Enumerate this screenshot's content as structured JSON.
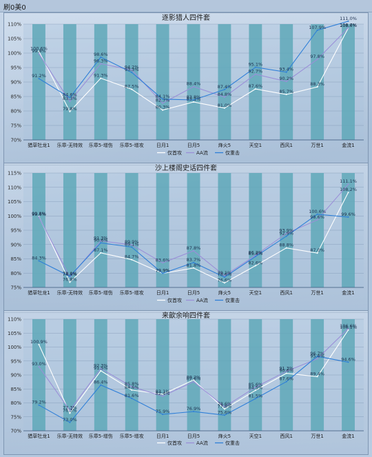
{
  "app": {
    "title": "刷0美0"
  },
  "chart_data": [
    {
      "type": "line",
      "title": "逐影猎人四件套",
      "categories": [
        "猎草牡龙1",
        "乐章-无特效",
        "乐章5-增伤",
        "乐章5-增攻",
        "日月1",
        "日月5",
        "烽火5",
        "天空1",
        "西风1",
        "万世1",
        "金流1"
      ],
      "ylim": [
        70,
        110
      ],
      "yticks": [
        "70%",
        "75%",
        "80%",
        "85%",
        "90%",
        "95%",
        "100%",
        "105%",
        "110%"
      ],
      "series": [
        {
          "name": "仅首攻",
          "color": "#ffffff",
          "values": [
            100.6,
            79.8,
            91.3,
            87.5,
            80.3,
            83.1,
            81.0,
            87.6,
            85.7,
            88.3,
            108.6
          ]
        },
        {
          "name": "AA流",
          "color": "#9a8fd8",
          "values": [
            99.8,
            83.3,
            96.3,
            94.2,
            82.7,
            88.4,
            84.8,
            92.7,
            90.2,
            97.8,
            108.7
          ]
        },
        {
          "name": "仅重击",
          "color": "#2e7fd8",
          "values": [
            91.2,
            84.6,
            98.6,
            93.3,
            84.1,
            83.8,
            87.4,
            95.1,
            93.4,
            107.9,
            111.0
          ]
        }
      ],
      "labels": [
        [
          "100.6%",
          "79.8%",
          "91.3%",
          "87.5%",
          "80.3%",
          "83.1%",
          "81.0%",
          "87.6%",
          "85.7%",
          "88.3%",
          "108.6%"
        ],
        [
          "99.8%",
          "83.3%",
          "96.3%",
          "94.2%",
          "82.7%",
          "88.4%",
          "84.8%",
          "92.7%",
          "90.2%",
          "97.8%",
          "108.7%"
        ],
        [
          "91.2%",
          "84.6%",
          "98.6%",
          "93.3%",
          "84.1%",
          "83.8%",
          "87.4%",
          "95.1%",
          "93.4%",
          "107.9%",
          "111.0%"
        ]
      ],
      "legend": [
        "仅首攻",
        "AA流",
        "仅重击"
      ]
    },
    {
      "type": "line",
      "title": "沙上楼阁史话四件套",
      "categories": [
        "猎草牡龙1",
        "乐章-无特效",
        "乐章5-增伤",
        "乐章5-增攻",
        "日月1",
        "日月5",
        "烽火5",
        "天空1",
        "西风1",
        "万世1",
        "金流1"
      ],
      "ylim": [
        75,
        115
      ],
      "yticks": [
        "75%",
        "80%",
        "85%",
        "90%",
        "95%",
        "100%",
        "105%",
        "110%",
        "115%"
      ],
      "series": [
        {
          "name": "仅首攻",
          "color": "#ffffff",
          "values": [
            99.8,
            76.8,
            87.1,
            84.7,
            79.9,
            81.8,
            76.6,
            82.6,
            88.8,
            87.0,
            108.2
          ]
        },
        {
          "name": "AA流",
          "color": "#9a8fd8",
          "values": [
            99.6,
            78.6,
            91.3,
            89.9,
            83.6,
            87.8,
            79.1,
            86.2,
            93.9,
            98.6,
            111.1
          ]
        },
        {
          "name": "仅重击",
          "color": "#2e7fd8",
          "values": [
            84.3,
            78.9,
            90.6,
            89.1,
            79.9,
            83.7,
            78.6,
            85.8,
            92.9,
            100.6,
            99.6
          ]
        }
      ],
      "labels": [
        [
          "99.8%",
          "76.8%",
          "87.1%",
          "84.7%",
          "79.9%",
          "81.8%",
          "76.6%",
          "82.6%",
          "88.8%",
          "87.0%",
          "108.2%"
        ],
        [
          "99.6%",
          "78.6%",
          "91.3%",
          "89.9%",
          "83.6%",
          "87.8%",
          "79.1%",
          "86.2%",
          "93.9%",
          "98.6%",
          "111.1%"
        ],
        [
          "84.3%",
          "78.9%",
          "90.6%",
          "89.1%",
          "79.9%",
          "83.7%",
          "78.6%",
          "85.8%",
          "92.9%",
          "100.6%",
          "99.6%"
        ]
      ],
      "legend": [
        "仅首攻",
        "AA流",
        "仅重击"
      ]
    },
    {
      "type": "line",
      "title": "来歆余响四件套",
      "categories": [
        "猎草牡龙1",
        "乐章-无特效",
        "乐章5-增伤",
        "乐章5-增攻",
        "日月1",
        "日月5",
        "烽火5",
        "天空1",
        "西风1",
        "万世1",
        "金流1"
      ],
      "ylim": [
        70,
        110
      ],
      "yticks": [
        "70%",
        "75%",
        "80%",
        "85%",
        "90%",
        "95%",
        "100%",
        "105%",
        "110%"
      ],
      "series": [
        {
          "name": "仅首攻",
          "color": "#ffffff",
          "values": [
            100.9,
            76.3,
            91.5,
            84.6,
            83.1,
            88.2,
            77.8,
            84.5,
            90.6,
            89.4,
            106.1
          ]
        },
        {
          "name": "AA流",
          "color": "#9a8fd8",
          "values": [
            93.0,
            77.3,
            92.3,
            85.8,
            82.4,
            87.6,
            78.6,
            85.6,
            91.3,
            95.8,
            106.6
          ]
        },
        {
          "name": "仅重击",
          "color": "#2e7fd8",
          "values": [
            79.2,
            73.0,
            86.4,
            81.6,
            75.9,
            76.9,
            75.6,
            81.5,
            87.6,
            96.7,
            94.6
          ]
        }
      ],
      "labels": [
        [
          "100.9%",
          "76.3%",
          "91.5%",
          "84.6%",
          "83.1%",
          "88.2%",
          "77.8%",
          "84.5%",
          "90.6%",
          "89.4%",
          "106.1%"
        ],
        [
          "93.0%",
          "77.3%",
          "92.3%",
          "85.8%",
          "82.4%",
          "87.6%",
          "78.6%",
          "85.6%",
          "91.3%",
          "95.8%",
          "106.6%"
        ],
        [
          "79.2%",
          "73.0%",
          "86.4%",
          "81.6%",
          "75.9%",
          "76.9%",
          "75.6%",
          "81.5%",
          "87.6%",
          "96.7%",
          "94.6%"
        ]
      ],
      "legend": [
        "仅首攻",
        "AA流",
        "仅重击"
      ]
    }
  ],
  "colors": {
    "column": "#5fa8b8",
    "grid": "#6e86a6",
    "axis": "#3e5a7e"
  }
}
